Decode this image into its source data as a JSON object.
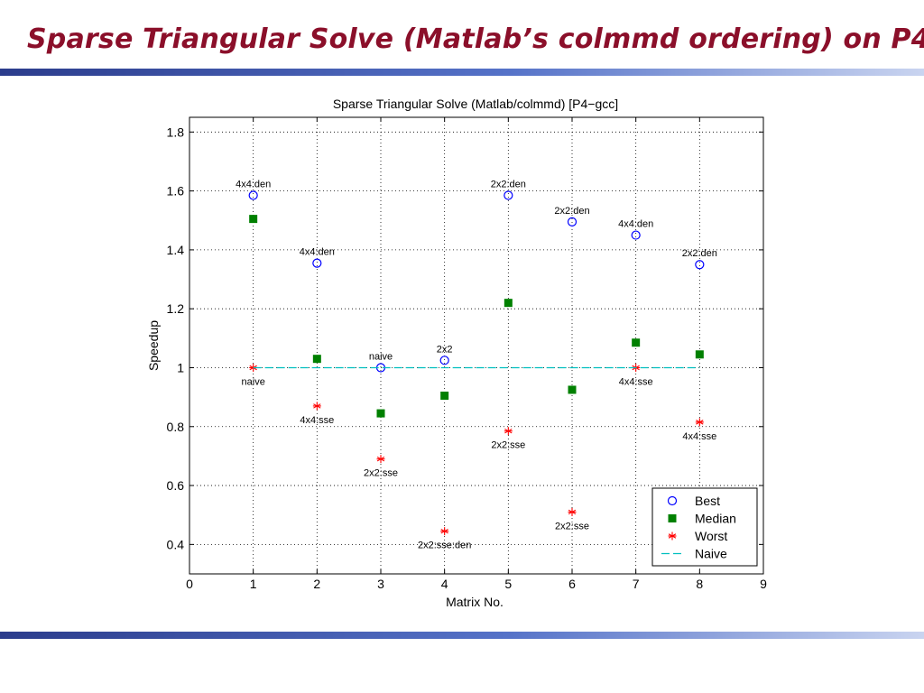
{
  "slide": {
    "title": "Sparse Triangular Solve (Matlab’s colmmd ordering) on P4"
  },
  "colors": {
    "title": "#8b0f2a",
    "best": "#0000ff",
    "median": "#008000",
    "worst": "#ff0000",
    "naive": "#00bfbf"
  },
  "chart_data": {
    "type": "scatter",
    "title": "Sparse Triangular Solve (Matlab/colmmd) [P4−gcc]",
    "xlabel": "Matrix No.",
    "ylabel": "Speedup",
    "xlim": [
      0,
      9
    ],
    "ylim": [
      0.3,
      1.85
    ],
    "xticks": [
      0,
      1,
      2,
      3,
      4,
      5,
      6,
      7,
      8,
      9
    ],
    "yticks": [
      0.4,
      0.6,
      0.8,
      1,
      1.2,
      1.4,
      1.6,
      1.8
    ],
    "ytick_labels": [
      "0.4",
      "0.6",
      "0.8",
      "1",
      "1.2",
      "1.4",
      "1.6",
      "1.8"
    ],
    "grid": true,
    "legend_position": "bottom-right",
    "x": [
      1,
      2,
      3,
      4,
      5,
      6,
      7,
      8
    ],
    "series": [
      {
        "name": "Best",
        "marker": "circle",
        "values": [
          1.585,
          1.355,
          1.0,
          1.025,
          1.585,
          1.495,
          1.45,
          1.35
        ],
        "labels": [
          "4x4:den",
          "4x4:den",
          "naive",
          "2x2",
          "2x2:den",
          "2x2:den",
          "4x4:den",
          "2x2:den"
        ]
      },
      {
        "name": "Median",
        "marker": "square",
        "values": [
          1.505,
          1.03,
          0.845,
          0.905,
          1.22,
          0.925,
          1.085,
          1.045
        ]
      },
      {
        "name": "Worst",
        "marker": "star",
        "values": [
          1.0,
          0.87,
          0.69,
          0.445,
          0.785,
          0.51,
          1.0,
          0.815
        ],
        "labels": [
          "naive",
          "4x4:sse",
          "2x2:sse",
          "2x2:sse:den",
          "2x2:sse",
          "2x2:sse",
          "4x4:sse",
          "4x4:sse"
        ]
      },
      {
        "name": "Naive",
        "marker": "dashed-line",
        "x": [
          1,
          8
        ],
        "values": [
          1.0,
          1.0
        ]
      }
    ]
  }
}
